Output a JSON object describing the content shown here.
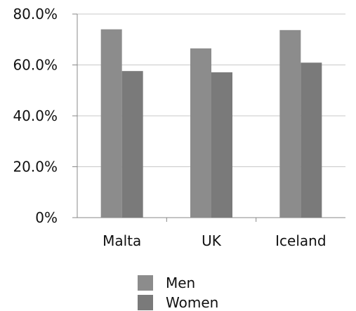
{
  "chart_data": {
    "type": "bar",
    "categories": [
      "Malta",
      "UK",
      "Iceland"
    ],
    "series": [
      {
        "name": "Men",
        "values": [
          74.0,
          66.5,
          73.7
        ],
        "color": "#8c8c8c"
      },
      {
        "name": "Women",
        "values": [
          57.6,
          57.1,
          60.9
        ],
        "color": "#7a7a7a"
      }
    ],
    "ylim": [
      0,
      80
    ],
    "yticks": [
      "0%",
      "20.0%",
      "40.0%",
      "60.0%",
      "80.0%"
    ],
    "ytick_values": [
      0,
      20,
      40,
      60,
      80
    ],
    "grid": true,
    "legend_position": "bottom"
  }
}
